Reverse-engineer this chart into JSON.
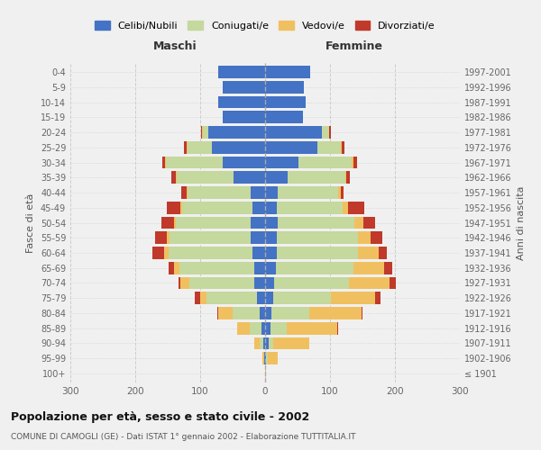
{
  "age_groups": [
    "100+",
    "95-99",
    "90-94",
    "85-89",
    "80-84",
    "75-79",
    "70-74",
    "65-69",
    "60-64",
    "55-59",
    "50-54",
    "45-49",
    "40-44",
    "35-39",
    "30-34",
    "25-29",
    "20-24",
    "15-19",
    "10-14",
    "5-9",
    "0-4"
  ],
  "birth_years": [
    "≤ 1901",
    "1902-1906",
    "1907-1911",
    "1912-1916",
    "1917-1921",
    "1922-1926",
    "1927-1931",
    "1932-1936",
    "1937-1941",
    "1942-1946",
    "1947-1951",
    "1952-1956",
    "1957-1961",
    "1962-1966",
    "1967-1971",
    "1972-1976",
    "1977-1981",
    "1982-1986",
    "1987-1991",
    "1992-1996",
    "1997-2001"
  ],
  "male_celibi": [
    0,
    1,
    3,
    5,
    8,
    12,
    16,
    17,
    20,
    22,
    22,
    20,
    22,
    48,
    65,
    82,
    88,
    65,
    72,
    65,
    72
  ],
  "male_coniugati": [
    0,
    1,
    5,
    18,
    42,
    78,
    100,
    115,
    128,
    125,
    115,
    108,
    98,
    88,
    88,
    38,
    8,
    0,
    0,
    0,
    0
  ],
  "male_vedovi": [
    0,
    2,
    8,
    20,
    22,
    10,
    14,
    8,
    7,
    4,
    3,
    2,
    1,
    1,
    1,
    1,
    1,
    0,
    0,
    0,
    0
  ],
  "male_divorziati": [
    0,
    0,
    0,
    0,
    2,
    8,
    3,
    8,
    18,
    18,
    20,
    22,
    8,
    8,
    5,
    4,
    2,
    0,
    0,
    0,
    0
  ],
  "female_celibi": [
    0,
    2,
    5,
    8,
    10,
    12,
    14,
    16,
    18,
    18,
    20,
    18,
    20,
    35,
    52,
    80,
    88,
    58,
    62,
    60,
    70
  ],
  "female_coniugati": [
    0,
    2,
    8,
    25,
    58,
    90,
    115,
    120,
    125,
    125,
    118,
    102,
    92,
    88,
    82,
    36,
    10,
    0,
    0,
    0,
    0
  ],
  "female_vedovi": [
    2,
    15,
    55,
    78,
    80,
    68,
    62,
    48,
    32,
    20,
    14,
    8,
    4,
    2,
    2,
    2,
    1,
    0,
    0,
    0,
    0
  ],
  "female_divorziati": [
    0,
    0,
    0,
    2,
    2,
    8,
    10,
    12,
    12,
    18,
    18,
    25,
    5,
    5,
    5,
    4,
    2,
    0,
    0,
    0,
    0
  ],
  "colors": {
    "celibi": "#4472C4",
    "coniugati": "#C5D89D",
    "vedovi": "#F0C060",
    "divorziati": "#C0392B"
  },
  "title1": "Popolazione per età, sesso e stato civile - 2002",
  "title2": "COMUNE DI CAMOGLI (GE) - Dati ISTAT 1° gennaio 2002 - Elaborazione TUTTITALIA.IT",
  "xlabel_left": "Maschi",
  "xlabel_right": "Femmine",
  "ylabel_left": "Fasce di età",
  "ylabel_right": "Anni di nascita",
  "xlim": 300,
  "bg_color": "#f0f0f0"
}
